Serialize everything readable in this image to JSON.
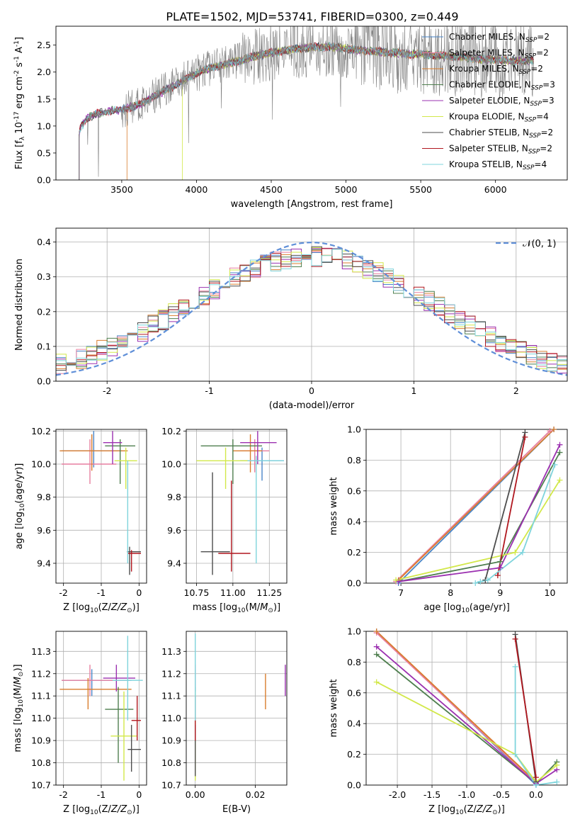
{
  "figure": {
    "title": "PLATE=1502, MJD=53741, FIBERID=0300, z=0.449"
  },
  "models": [
    {
      "name": "Chabrier MILES",
      "n": "2",
      "color": "#4a86c8"
    },
    {
      "name": "Salpeter MILES",
      "n": "2",
      "color": "#e77fa0"
    },
    {
      "name": "Kroupa MILES",
      "n": "2",
      "color": "#d97d2e"
    },
    {
      "name": "Chabrier ELODIE",
      "n": "3",
      "color": "#4f7f4f"
    },
    {
      "name": "Salpeter ELODIE",
      "n": "3",
      "color": "#9b30b0"
    },
    {
      "name": "Kroupa ELODIE",
      "n": "4",
      "color": "#d2e84a"
    },
    {
      "name": "Chabrier STELIB",
      "n": "2",
      "color": "#4d4d4d"
    },
    {
      "name": "Salpeter STELIB",
      "n": "2",
      "color": "#b0171f"
    },
    {
      "name": "Kroupa STELIB",
      "n": "4",
      "color": "#7fd4dc"
    }
  ],
  "chart_data": [
    {
      "id": "spectrum",
      "type": "line",
      "xlabel": "wavelength [Angstrom, rest frame]",
      "ylabel": "Flux [f_λ 10^-17 erg cm^-2 s^-1 A^-1]",
      "xlim": [
        3060,
        6480
      ],
      "ylim": [
        0,
        2.85
      ],
      "xticks": [
        3500,
        4000,
        4500,
        5000,
        5500,
        6000
      ],
      "yticks": [
        0.0,
        0.5,
        1.0,
        1.5,
        2.0,
        2.5
      ],
      "data_color": "#808080",
      "continuum": {
        "x": [
          3210,
          3220,
          3260,
          3320,
          3400,
          3500,
          3600,
          3700,
          3800,
          3900,
          4000,
          4100,
          4200,
          4300,
          4400,
          4500,
          4600,
          4700,
          4800,
          4900,
          5000,
          5100,
          5200,
          5300,
          5400,
          5500,
          5600,
          5700,
          5800,
          5900,
          6000,
          6100,
          6200,
          6260
        ],
        "y": [
          0.78,
          0.95,
          1.12,
          1.22,
          1.27,
          1.3,
          1.38,
          1.52,
          1.68,
          1.82,
          1.98,
          2.08,
          2.15,
          2.22,
          2.3,
          2.36,
          2.4,
          2.44,
          2.46,
          2.47,
          2.43,
          2.4,
          2.38,
          2.36,
          2.34,
          2.33,
          2.31,
          2.29,
          2.27,
          2.24,
          2.23,
          2.21,
          2.21,
          2.2
        ]
      }
    },
    {
      "id": "residuals",
      "type": "bar",
      "xlabel": "(data-model)/error",
      "ylabel": "Normed distribution",
      "xlim": [
        -2.5,
        2.5
      ],
      "ylim": [
        0,
        0.44
      ],
      "xticks": [
        -2,
        -1,
        0,
        1,
        2
      ],
      "yticks": [
        0.0,
        0.1,
        0.2,
        0.3,
        0.4
      ],
      "reference_label": "𝒩(0, 1)",
      "reference_color": "#5f8fd8"
    },
    {
      "id": "age_vs_Z",
      "type": "scatter",
      "xlabel": "Z [log10(Z/Z⊙)]",
      "ylabel": "age [log10(age/yr)]",
      "xlim": [
        -2.2,
        0.2
      ],
      "ylim": [
        9.28,
        10.21
      ],
      "xticks": [
        -2,
        -1,
        0
      ],
      "yticks": [
        9.4,
        9.6,
        9.8,
        10.0,
        10.2
      ],
      "points": [
        {
          "m": 0,
          "x": -1.2,
          "y": 10.08,
          "xl": -2.05,
          "xh": -0.45,
          "yl": 9.98,
          "yh": 10.2
        },
        {
          "m": 1,
          "x": -1.3,
          "y": 10.0,
          "xl": -2.05,
          "xh": -0.6,
          "yl": 9.88,
          "yh": 10.15
        },
        {
          "m": 2,
          "x": -1.25,
          "y": 10.08,
          "xl": -2.1,
          "xh": -0.3,
          "yl": 9.96,
          "yh": 10.18
        },
        {
          "m": 3,
          "x": -0.5,
          "y": 10.11,
          "xl": -0.9,
          "xh": -0.1,
          "yl": 9.88,
          "yh": 10.15
        },
        {
          "m": 4,
          "x": -0.7,
          "y": 10.13,
          "xl": -0.95,
          "xh": -0.45,
          "yl": 10.0,
          "yh": 10.2
        },
        {
          "m": 5,
          "x": -0.35,
          "y": 10.02,
          "xl": -0.65,
          "xh": -0.05,
          "yl": 9.85,
          "yh": 10.1
        },
        {
          "m": 6,
          "x": -0.25,
          "y": 9.47,
          "xl": -0.32,
          "xh": 0.05,
          "yl": 9.33,
          "yh": 9.5
        },
        {
          "m": 7,
          "x": -0.2,
          "y": 9.46,
          "xl": -0.3,
          "xh": 0.05,
          "yl": 9.35,
          "yh": 9.48
        },
        {
          "m": 8,
          "x": -0.3,
          "y": 10.0,
          "xl": -0.32,
          "xh": -0.28,
          "yl": 9.4,
          "yh": 10.02
        }
      ]
    },
    {
      "id": "age_vs_mass",
      "type": "scatter",
      "xlabel": "mass [log10(M/M⊙)]",
      "ylabel": "",
      "xlim": [
        10.68,
        11.37
      ],
      "ylim": [
        9.28,
        10.21
      ],
      "xticks": [
        10.75,
        11.0,
        11.25
      ],
      "yticks": [
        9.4,
        9.6,
        9.8,
        10.0,
        10.2
      ],
      "points": [
        {
          "m": 0,
          "x": 11.2,
          "y": 10.02,
          "xl": 11.05,
          "xh": 11.35,
          "yl": 9.9,
          "yh": 10.1
        },
        {
          "m": 1,
          "x": 11.15,
          "y": 10.08,
          "xl": 11.05,
          "xh": 11.25,
          "yl": 9.95,
          "yh": 10.15
        },
        {
          "m": 2,
          "x": 11.12,
          "y": 10.08,
          "xl": 11.0,
          "xh": 11.2,
          "yl": 9.95,
          "yh": 10.18
        },
        {
          "m": 3,
          "x": 11.0,
          "y": 10.11,
          "xl": 10.78,
          "xh": 11.2,
          "yl": 9.88,
          "yh": 10.15
        },
        {
          "m": 4,
          "x": 11.17,
          "y": 10.13,
          "xl": 11.05,
          "xh": 11.3,
          "yl": 10.0,
          "yh": 10.2
        },
        {
          "m": 5,
          "x": 10.95,
          "y": 10.02,
          "xl": 10.75,
          "xh": 11.12,
          "yl": 9.85,
          "yh": 10.1
        },
        {
          "m": 6,
          "x": 10.86,
          "y": 9.47,
          "xl": 10.78,
          "xh": 10.98,
          "yl": 9.33,
          "yh": 9.95
        },
        {
          "m": 7,
          "x": 10.99,
          "y": 9.46,
          "xl": 10.9,
          "xh": 11.12,
          "yl": 9.35,
          "yh": 9.9
        },
        {
          "m": 8,
          "x": 11.16,
          "y": 10.02,
          "xl": 11.1,
          "xh": 11.35,
          "yl": 9.4,
          "yh": 10.05
        }
      ]
    },
    {
      "id": "weight_vs_age",
      "type": "line",
      "xlabel": "age [log10(age/yr)]",
      "ylabel": "mass weight",
      "xlim": [
        6.3,
        10.35
      ],
      "ylim": [
        0,
        1.0
      ],
      "xticks": [
        7,
        8,
        9,
        10
      ],
      "yticks": [
        0.0,
        0.2,
        0.4,
        0.6,
        0.8,
        1.0
      ],
      "series": [
        {
          "m": 0,
          "x": [
            6.95,
            10.08
          ],
          "y": [
            0.0,
            1.0
          ]
        },
        {
          "m": 1,
          "x": [
            6.9,
            10.0
          ],
          "y": [
            0.01,
            0.99
          ]
        },
        {
          "m": 2,
          "x": [
            6.95,
            10.08
          ],
          "y": [
            0.02,
            1.0
          ]
        },
        {
          "m": 3,
          "x": [
            6.95,
            9.0,
            10.2
          ],
          "y": [
            0.01,
            0.14,
            0.85
          ]
        },
        {
          "m": 4,
          "x": [
            6.95,
            9.0,
            10.2
          ],
          "y": [
            0.01,
            0.1,
            0.9
          ]
        },
        {
          "m": 5,
          "x": [
            6.9,
            9.3,
            10.2
          ],
          "y": [
            0.02,
            0.2,
            0.67
          ]
        },
        {
          "m": 6,
          "x": [
            8.7,
            9.5
          ],
          "y": [
            0.02,
            0.98
          ]
        },
        {
          "m": 7,
          "x": [
            8.95,
            9.5
          ],
          "y": [
            0.05,
            0.95
          ]
        },
        {
          "m": 8,
          "x": [
            8.5,
            8.6,
            8.75,
            9.45,
            10.1
          ],
          "y": [
            0.0,
            0.01,
            0.02,
            0.2,
            0.77
          ]
        }
      ]
    },
    {
      "id": "mass_vs_Z",
      "type": "scatter",
      "xlabel": "Z [log10(Z/Z⊙)]",
      "ylabel": "mass [log10(M/M⊙)]",
      "xlim": [
        -2.2,
        0.2
      ],
      "ylim": [
        10.7,
        11.39
      ],
      "xticks": [
        -2,
        -1,
        0
      ],
      "yticks": [
        10.7,
        10.8,
        10.9,
        11.0,
        11.1,
        11.2,
        11.3
      ],
      "points": [
        {
          "m": 0,
          "x": -1.25,
          "y": 11.17,
          "xl": -2.05,
          "xh": -0.2,
          "yl": 11.1,
          "yh": 11.22
        },
        {
          "m": 1,
          "x": -1.3,
          "y": 11.17,
          "xl": -2.05,
          "xh": -0.3,
          "yl": 11.1,
          "yh": 11.24
        },
        {
          "m": 2,
          "x": -1.35,
          "y": 11.13,
          "xl": -2.1,
          "xh": -0.2,
          "yl": 11.04,
          "yh": 11.18
        },
        {
          "m": 3,
          "x": -0.55,
          "y": 11.04,
          "xl": -0.9,
          "xh": -0.15,
          "yl": 10.8,
          "yh": 11.14
        },
        {
          "m": 4,
          "x": -0.6,
          "y": 11.18,
          "xl": -0.95,
          "xh": -0.1,
          "yl": 11.12,
          "yh": 11.24
        },
        {
          "m": 5,
          "x": -0.4,
          "y": 10.92,
          "xl": -0.75,
          "xh": -0.05,
          "yl": 10.72,
          "yh": 11.12
        },
        {
          "m": 6,
          "x": -0.2,
          "y": 10.86,
          "xl": -0.3,
          "xh": 0.05,
          "yl": 10.76,
          "yh": 10.97
        },
        {
          "m": 7,
          "x": -0.05,
          "y": 10.99,
          "xl": -0.2,
          "xh": 0.05,
          "yl": 10.9,
          "yh": 11.1
        },
        {
          "m": 8,
          "x": -0.3,
          "y": 11.17,
          "xl": -0.7,
          "xh": 0.1,
          "yl": 10.99,
          "yh": 11.37
        }
      ]
    },
    {
      "id": "mass_vs_ebv",
      "type": "scatter",
      "xlabel": "E(B-V)",
      "ylabel": "",
      "xlim": [
        -0.003,
        0.0305
      ],
      "ylim": [
        10.7,
        11.39
      ],
      "xticks": [
        0.0,
        0.02
      ],
      "yticks": [
        10.7,
        10.8,
        10.9,
        11.0,
        11.1,
        11.2,
        11.3
      ],
      "points": [
        {
          "m": 0,
          "x": 0.0,
          "y": 11.17,
          "xl": 0.0,
          "xh": 0.0,
          "yl": 11.1,
          "yh": 11.22
        },
        {
          "m": 1,
          "x": 0.0,
          "y": 11.17,
          "xl": 0.0,
          "xh": 0.0,
          "yl": 11.1,
          "yh": 11.24
        },
        {
          "m": 2,
          "x": 0.0234,
          "y": 11.13,
          "xl": 0.0234,
          "xh": 0.0234,
          "yl": 11.04,
          "yh": 11.2
        },
        {
          "m": 3,
          "x": 0.0,
          "y": 11.04,
          "xl": 0.0,
          "xh": 0.0,
          "yl": 10.8,
          "yh": 11.14
        },
        {
          "m": 4,
          "x": 0.03,
          "y": 11.18,
          "xl": 0.03,
          "xh": 0.03,
          "yl": 11.1,
          "yh": 11.24
        },
        {
          "m": 5,
          "x": 0.0,
          "y": 10.92,
          "xl": 0.0,
          "xh": 0.0,
          "yl": 10.72,
          "yh": 11.12
        },
        {
          "m": 6,
          "x": 0.0,
          "y": 10.86,
          "xl": 0.0,
          "xh": 0.0,
          "yl": 10.74,
          "yh": 10.97
        },
        {
          "m": 7,
          "x": 0.0,
          "y": 10.99,
          "xl": 0.0,
          "xh": 0.0,
          "yl": 10.9,
          "yh": 11.1
        },
        {
          "m": 8,
          "x": 0.0,
          "y": 11.17,
          "xl": 0.0,
          "xh": 0.0,
          "yl": 10.99,
          "yh": 11.38
        }
      ]
    },
    {
      "id": "weight_vs_Z",
      "type": "line",
      "xlabel": "Z [log10(Z/Z⊙)]",
      "ylabel": "mass weight",
      "xlim": [
        -2.45,
        0.45
      ],
      "ylim": [
        0,
        1.0
      ],
      "xticks": [
        -2.0,
        -1.5,
        -1.0,
        -0.5,
        0.0
      ],
      "yticks": [
        0.0,
        0.2,
        0.4,
        0.6,
        0.8,
        1.0
      ],
      "series": [
        {
          "m": 0,
          "x": [
            -2.3,
            0.0
          ],
          "y": [
            1.0,
            0.0
          ]
        },
        {
          "m": 1,
          "x": [
            -2.3,
            0.0
          ],
          "y": [
            0.99,
            0.01
          ]
        },
        {
          "m": 2,
          "x": [
            -2.3,
            0.0
          ],
          "y": [
            1.0,
            0.02
          ]
        },
        {
          "m": 3,
          "x": [
            -2.3,
            0.0,
            0.3
          ],
          "y": [
            0.85,
            0.01,
            0.15
          ]
        },
        {
          "m": 4,
          "x": [
            -2.3,
            0.0,
            0.3
          ],
          "y": [
            0.9,
            0.01,
            0.1
          ]
        },
        {
          "m": 5,
          "x": [
            -2.3,
            -0.3,
            0.0,
            0.3
          ],
          "y": [
            0.67,
            0.2,
            0.02,
            0.13
          ]
        },
        {
          "m": 6,
          "x": [
            -0.3,
            0.0
          ],
          "y": [
            0.98,
            0.02
          ]
        },
        {
          "m": 7,
          "x": [
            -0.3,
            0.0
          ],
          "y": [
            0.95,
            0.05
          ]
        },
        {
          "m": 8,
          "x": [
            -0.3,
            -0.3,
            0.0,
            0.3
          ],
          "y": [
            0.77,
            0.2,
            0.0,
            0.02
          ]
        }
      ]
    }
  ]
}
